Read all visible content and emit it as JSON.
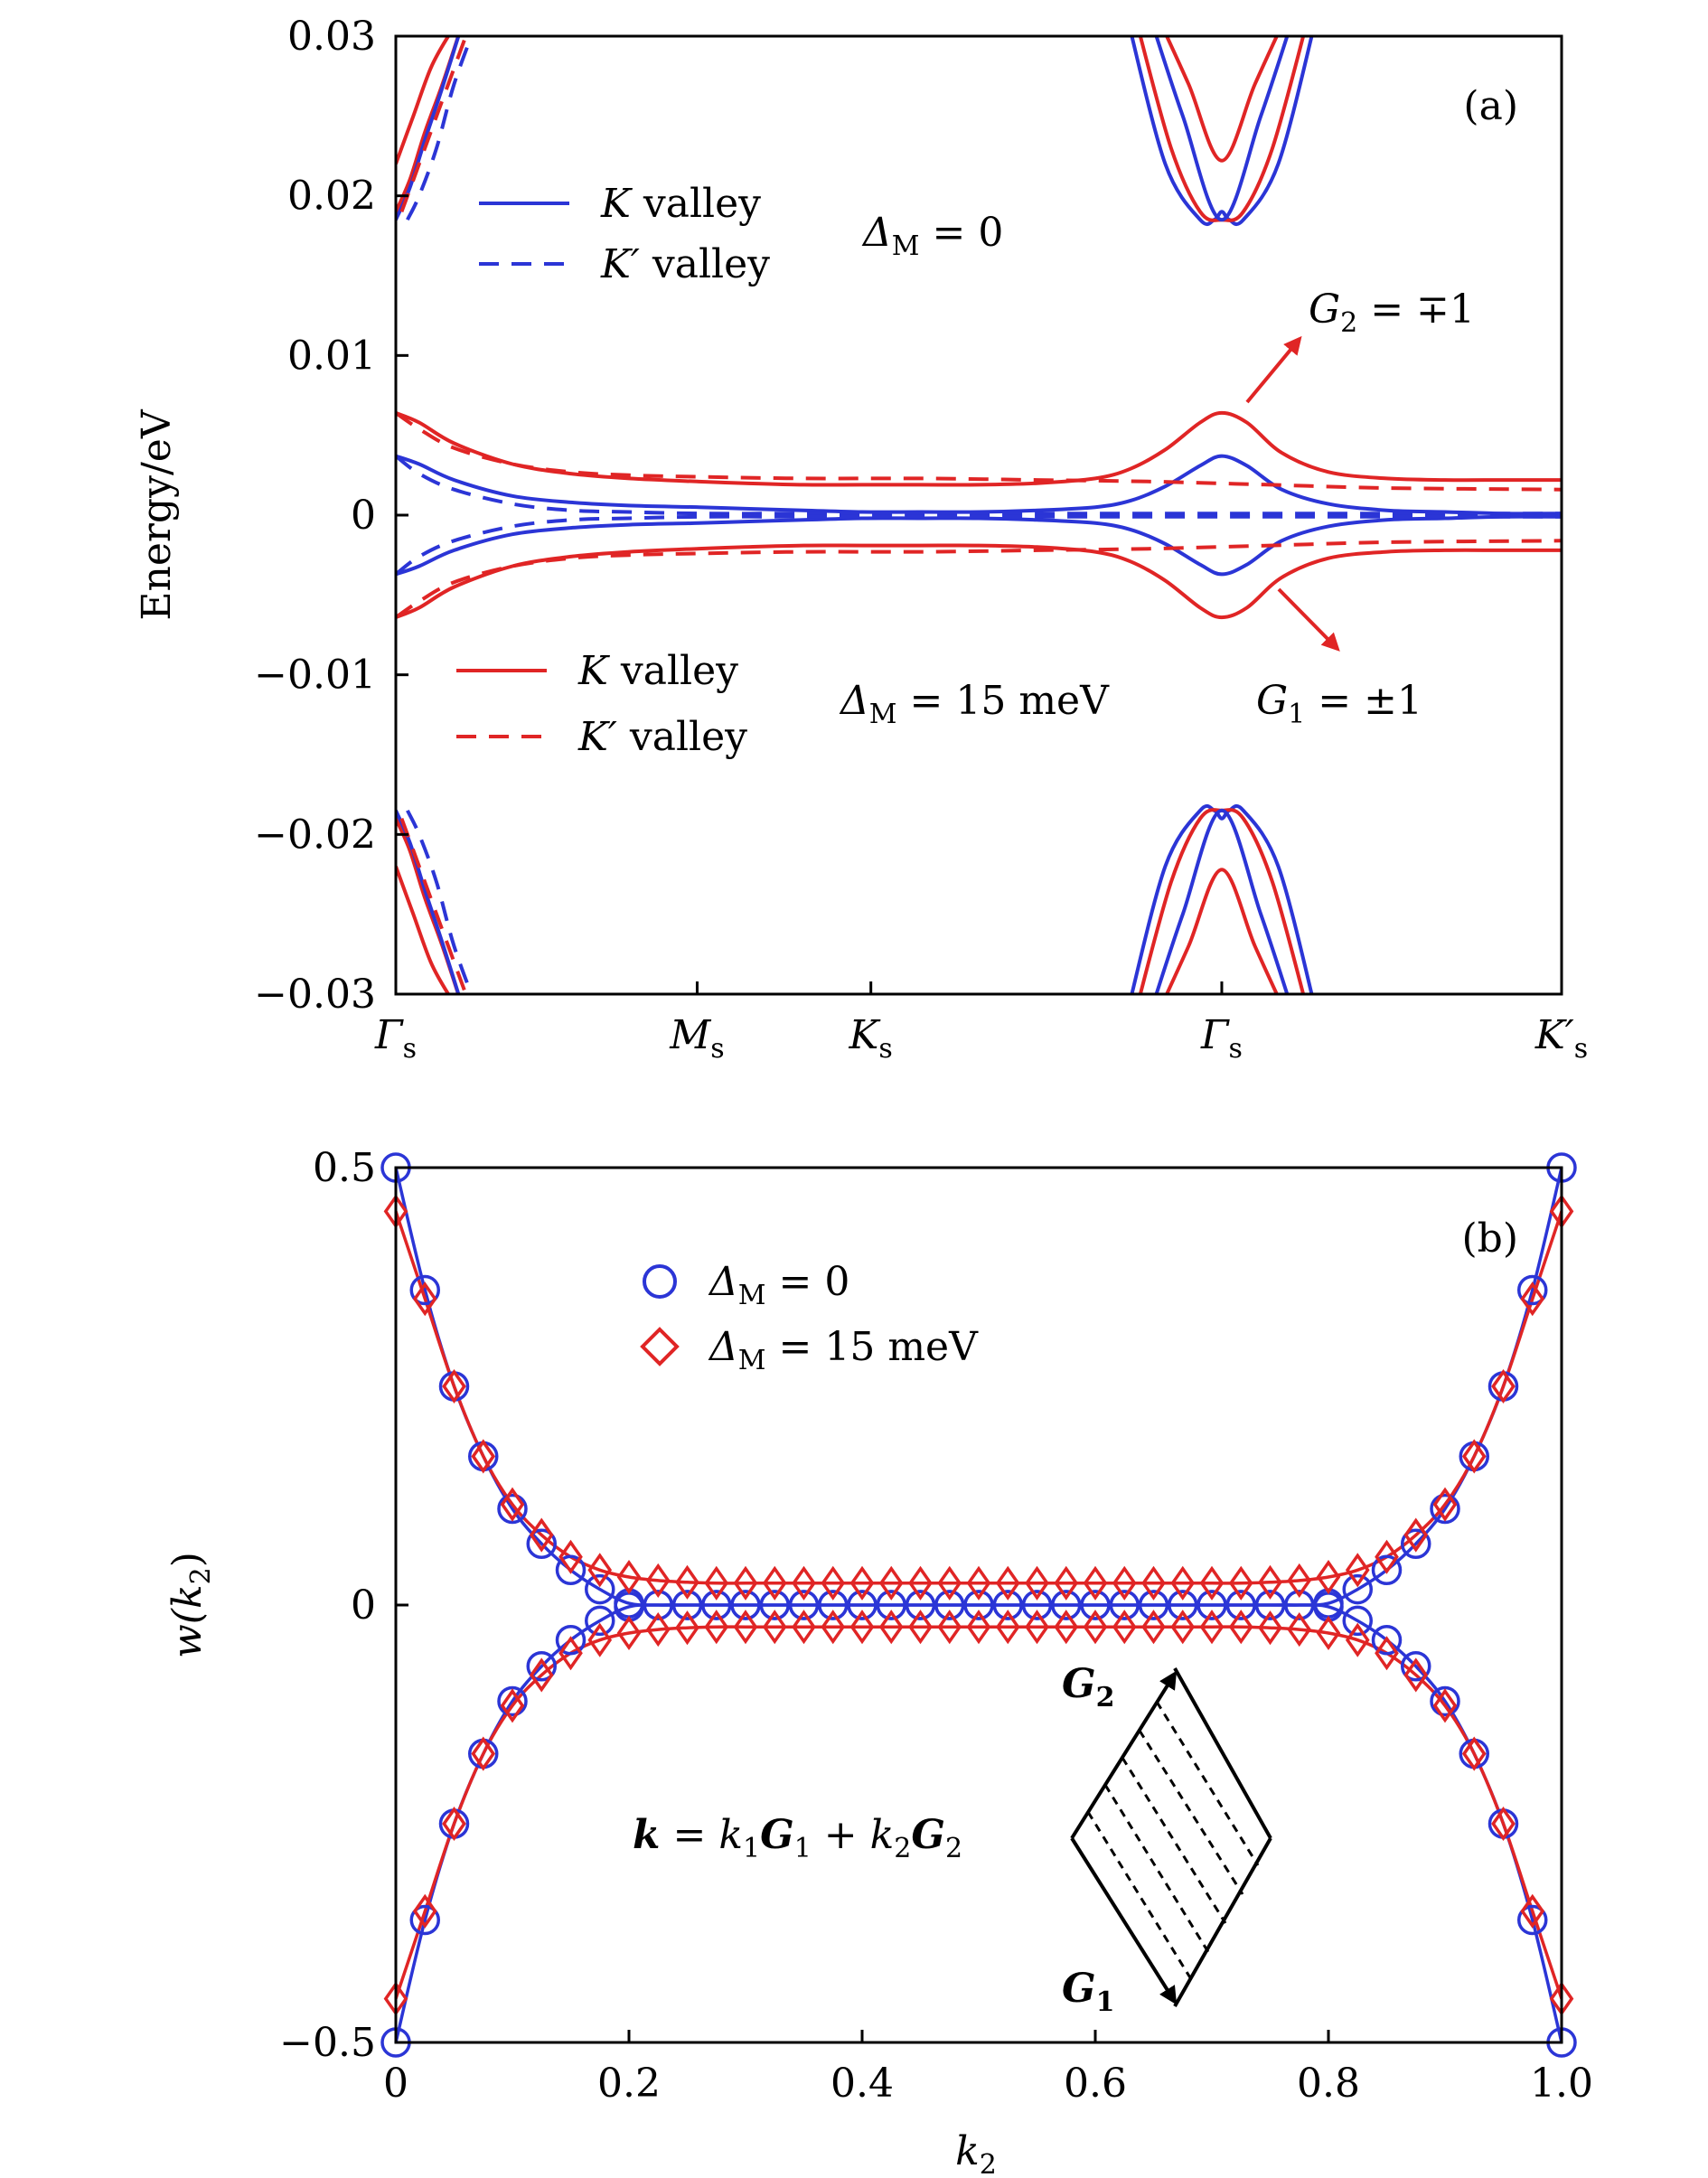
{
  "colors": {
    "blue": "#2b35d6",
    "red": "#e02525",
    "black": "#000000"
  },
  "chart_data": [
    {
      "type": "line",
      "panel_label": "(a)",
      "ylabel": "Energy/eV",
      "ylim": [
        -0.03,
        0.03
      ],
      "yticks": [
        -0.03,
        -0.02,
        -0.01,
        0,
        0.01,
        0.02,
        0.03
      ],
      "ytick_labels": [
        "−0.03",
        "−0.02",
        "−0.01",
        "0",
        "0.01",
        "0.02",
        "0.03"
      ],
      "xlim": [
        0,
        1
      ],
      "xticks": [
        {
          "pos": 0.0,
          "main": "Γ",
          "sub": "s"
        },
        {
          "pos": 0.2585,
          "main": "M",
          "sub": "s"
        },
        {
          "pos": 0.4075,
          "main": "K",
          "sub": "s"
        },
        {
          "pos": 0.7085,
          "main": "Γ",
          "sub": "s"
        },
        {
          "pos": 1.0,
          "main": "K′",
          "sub": "s"
        }
      ],
      "legend_top": {
        "entries": [
          {
            "main": "K",
            "rest": " valley",
            "style": "solid",
            "color": "blue"
          },
          {
            "main": "K′",
            "rest": " valley",
            "style": "dashed",
            "color": "blue"
          }
        ],
        "condition": {
          "sym": "Δ",
          "sub": "M",
          "rest": " = 0"
        }
      },
      "legend_bottom": {
        "entries": [
          {
            "main": "K",
            "rest": " valley",
            "style": "solid",
            "color": "red"
          },
          {
            "main": "K′",
            "rest": " valley",
            "style": "dashed",
            "color": "red"
          }
        ],
        "condition": {
          "sym": "Δ",
          "sub": "M",
          "rest": " = 15 meV"
        }
      },
      "annotations": [
        {
          "sym": "G",
          "sub": "2",
          "rest": " = ∓1"
        },
        {
          "sym": "G",
          "sub": "1",
          "rest": " = ±1"
        }
      ],
      "series": [
        {
          "name": "K valley, ΔM = 0",
          "color": "blue",
          "style": "solid",
          "x": [
            0,
            0.02,
            0.05,
            0.1,
            0.15,
            0.2,
            0.26,
            0.3,
            0.35,
            0.4,
            0.45,
            0.5,
            0.55,
            0.6,
            0.63,
            0.66,
            0.69,
            0.7085,
            0.73,
            0.76,
            0.8,
            0.85,
            0.9,
            0.95,
            1.0
          ],
          "y": [
            0.0037,
            0.0032,
            0.0022,
            0.0012,
            0.0008,
            0.0006,
            0.0005,
            0.0004,
            0.0003,
            0.0002,
            0.0002,
            0.0002,
            0.0003,
            0.0005,
            0.0009,
            0.0018,
            0.0031,
            0.0037,
            0.0031,
            0.0016,
            0.0007,
            0.0003,
            0.0002,
            0.0001,
            0.0001
          ]
        },
        {
          "name": "K′ valley, ΔM = 0",
          "color": "blue",
          "style": "dashed",
          "x": [
            0,
            0.02,
            0.05,
            0.1,
            0.15,
            0.2,
            0.26,
            0.35,
            0.45,
            0.55,
            0.65,
            0.75,
            0.85,
            1.0
          ],
          "y": [
            0.0037,
            0.0026,
            0.0016,
            0.0007,
            0.0003,
            0.0002,
            0.0001,
            0.0001,
            0.0001,
            0.0001,
            0.0001,
            0.0001,
            0.0001,
            0.0001
          ]
        },
        {
          "name": "K valley, ΔM = 15 meV",
          "color": "red",
          "style": "solid",
          "x": [
            0,
            0.02,
            0.05,
            0.1,
            0.15,
            0.2,
            0.26,
            0.3,
            0.35,
            0.4,
            0.45,
            0.5,
            0.55,
            0.6,
            0.63,
            0.66,
            0.69,
            0.7085,
            0.73,
            0.76,
            0.8,
            0.85,
            0.9,
            0.95,
            1.0
          ],
          "y": [
            0.0064,
            0.0058,
            0.0045,
            0.0032,
            0.0026,
            0.0023,
            0.0021,
            0.002,
            0.0019,
            0.0019,
            0.0019,
            0.0019,
            0.002,
            0.0023,
            0.0029,
            0.0041,
            0.0058,
            0.0064,
            0.0058,
            0.0039,
            0.0027,
            0.0023,
            0.0022,
            0.0022,
            0.0022
          ]
        },
        {
          "name": "K′ valley, ΔM = 15 meV",
          "color": "red",
          "style": "dashed",
          "x": [
            0,
            0.02,
            0.05,
            0.1,
            0.15,
            0.2,
            0.26,
            0.35,
            0.45,
            0.55,
            0.65,
            0.75,
            0.85,
            1.0
          ],
          "y": [
            0.0064,
            0.0054,
            0.0042,
            0.0032,
            0.0027,
            0.0025,
            0.0024,
            0.0023,
            0.0023,
            0.0022,
            0.0021,
            0.0019,
            0.0017,
            0.0016
          ]
        }
      ],
      "bulk_bands": [
        {
          "color": "red",
          "style": "solid",
          "x": [
            0,
            0.015,
            0.03,
            0.045,
            0.055
          ],
          "y": [
            0.022,
            0.025,
            0.028,
            0.03,
            0.031
          ]
        },
        {
          "color": "red",
          "style": "solid",
          "x": [
            0,
            0.012,
            0.025,
            0.04,
            0.058
          ],
          "y": [
            0.019,
            0.021,
            0.024,
            0.027,
            0.031
          ]
        },
        {
          "color": "blue",
          "style": "solid",
          "x": [
            0,
            0.012,
            0.025,
            0.04,
            0.058
          ],
          "y": [
            0.0185,
            0.0205,
            0.0235,
            0.0268,
            0.031
          ]
        },
        {
          "color": "blue",
          "style": "dashed",
          "x": [
            0.01,
            0.02,
            0.035,
            0.05,
            0.07
          ],
          "y": [
            0.0185,
            0.02,
            0.023,
            0.027,
            0.031
          ]
        },
        {
          "color": "red",
          "style": "dashed",
          "x": [
            0.005,
            0.015,
            0.03,
            0.045,
            0.065
          ],
          "y": [
            0.019,
            0.021,
            0.024,
            0.027,
            0.031
          ]
        },
        {
          "color": "red",
          "style": "solid",
          "x": [
            0,
            0.015,
            0.03,
            0.045,
            0.055
          ],
          "y": [
            -0.022,
            -0.025,
            -0.028,
            -0.03,
            -0.031
          ]
        },
        {
          "color": "red",
          "style": "solid",
          "x": [
            0,
            0.012,
            0.025,
            0.04,
            0.058
          ],
          "y": [
            -0.019,
            -0.021,
            -0.024,
            -0.027,
            -0.031
          ]
        },
        {
          "color": "blue",
          "style": "solid",
          "x": [
            0,
            0.012,
            0.025,
            0.04,
            0.058
          ],
          "y": [
            -0.0185,
            -0.0205,
            -0.0235,
            -0.0268,
            -0.031
          ]
        },
        {
          "color": "blue",
          "style": "dashed",
          "x": [
            0.01,
            0.02,
            0.035,
            0.05,
            0.07
          ],
          "y": [
            -0.0185,
            -0.02,
            -0.023,
            -0.027,
            -0.031
          ]
        },
        {
          "color": "red",
          "style": "dashed",
          "x": [
            0.005,
            0.015,
            0.03,
            0.045,
            0.065
          ],
          "y": [
            -0.019,
            -0.021,
            -0.024,
            -0.027,
            -0.031
          ]
        },
        {
          "color": "blue",
          "style": "solid",
          "x": [
            0.628,
            0.66,
            0.69,
            0.702,
            0.7085,
            0.715,
            0.727,
            0.757,
            0.789
          ],
          "y": [
            0.031,
            0.022,
            0.0185,
            0.0185,
            0.019,
            0.0185,
            0.0185,
            0.022,
            0.031
          ]
        },
        {
          "color": "red",
          "style": "solid",
          "x": [
            0.635,
            0.665,
            0.69,
            0.7085,
            0.727,
            0.752,
            0.782
          ],
          "y": [
            0.031,
            0.023,
            0.019,
            0.0185,
            0.019,
            0.023,
            0.031
          ]
        },
        {
          "color": "blue",
          "style": "solid",
          "x": [
            0.648,
            0.675,
            0.7085,
            0.742,
            0.769
          ],
          "y": [
            0.031,
            0.025,
            0.0185,
            0.025,
            0.031
          ]
        },
        {
          "color": "red",
          "style": "solid",
          "x": [
            0.655,
            0.68,
            0.7085,
            0.737,
            0.762
          ],
          "y": [
            0.031,
            0.027,
            0.0222,
            0.027,
            0.031
          ]
        },
        {
          "color": "blue",
          "style": "solid",
          "x": [
            0.628,
            0.66,
            0.69,
            0.702,
            0.7085,
            0.715,
            0.727,
            0.757,
            0.789
          ],
          "y": [
            -0.031,
            -0.022,
            -0.0185,
            -0.0185,
            -0.019,
            -0.0185,
            -0.0185,
            -0.022,
            -0.031
          ]
        },
        {
          "color": "red",
          "style": "solid",
          "x": [
            0.635,
            0.665,
            0.69,
            0.7085,
            0.727,
            0.752,
            0.782
          ],
          "y": [
            -0.031,
            -0.023,
            -0.019,
            -0.0185,
            -0.019,
            -0.023,
            -0.031
          ]
        },
        {
          "color": "blue",
          "style": "solid",
          "x": [
            0.648,
            0.675,
            0.7085,
            0.742,
            0.769
          ],
          "y": [
            -0.031,
            -0.025,
            -0.0185,
            -0.025,
            -0.031
          ]
        },
        {
          "color": "red",
          "style": "solid",
          "x": [
            0.655,
            0.68,
            0.7085,
            0.737,
            0.762
          ],
          "y": [
            -0.031,
            -0.027,
            -0.0222,
            -0.027,
            -0.031
          ]
        }
      ]
    },
    {
      "type": "scatter",
      "panel_label": "(b)",
      "xlabel": {
        "sym": "k",
        "sub": "2"
      },
      "ylabel": {
        "pre": "w(",
        "sym": "k",
        "sub": "2",
        "post": ")"
      },
      "xlim": [
        0,
        1.0
      ],
      "ylim": [
        -0.5,
        0.5
      ],
      "xticks": [
        0,
        0.2,
        0.4,
        0.6,
        0.8,
        1.0
      ],
      "xtick_labels": [
        "0",
        "0.2",
        "0.4",
        "0.6",
        "0.8",
        "1.0"
      ],
      "yticks": [
        -0.5,
        0,
        0.5
      ],
      "ytick_labels": [
        "−0.5",
        "0",
        "0.5"
      ],
      "legend": [
        {
          "marker": "circle",
          "color": "blue",
          "sym": "Δ",
          "sub": "M",
          "rest": " = 0"
        },
        {
          "marker": "diamond",
          "color": "red",
          "sym": "Δ",
          "sub": "M",
          "rest": " = 15 meV"
        }
      ],
      "x_grid": [
        0,
        0.025,
        0.05,
        0.075,
        0.1,
        0.125,
        0.15,
        0.175,
        0.2,
        0.225,
        0.25,
        0.275,
        0.3,
        0.325,
        0.35,
        0.375,
        0.4,
        0.425,
        0.45,
        0.475,
        0.5,
        0.525,
        0.55,
        0.575,
        0.6,
        0.625,
        0.65,
        0.675,
        0.7,
        0.725,
        0.75,
        0.775,
        0.8,
        0.825,
        0.85,
        0.875,
        0.9,
        0.925,
        0.95,
        0.975,
        1.0
      ],
      "series": [
        {
          "name": "ΔM = 0 (upper)",
          "color": "blue",
          "marker": "circle",
          "y": [
            0.5,
            0.36,
            0.25,
            0.17,
            0.11,
            0.07,
            0.04,
            0.018,
            0.002,
            0,
            0,
            0,
            0,
            0,
            0,
            0,
            0,
            0,
            0,
            0,
            0,
            0,
            0,
            0,
            0,
            0,
            0,
            0,
            0,
            0,
            0,
            0,
            0.002,
            0.018,
            0.04,
            0.07,
            0.11,
            0.17,
            0.25,
            0.36,
            0.5
          ]
        },
        {
          "name": "ΔM = 0 (lower)",
          "color": "blue",
          "marker": "circle",
          "y": [
            -0.5,
            -0.36,
            -0.25,
            -0.17,
            -0.11,
            -0.07,
            -0.04,
            -0.018,
            -0.002,
            0,
            0,
            0,
            0,
            0,
            0,
            0,
            0,
            0,
            0,
            0,
            0,
            0,
            0,
            0,
            0,
            0,
            0,
            0,
            0,
            0,
            0,
            0,
            -0.002,
            -0.018,
            -0.04,
            -0.07,
            -0.11,
            -0.17,
            -0.25,
            -0.36,
            -0.5
          ]
        },
        {
          "name": "ΔM = 15 meV (upper)",
          "color": "red",
          "marker": "diamond",
          "y": [
            0.45,
            0.35,
            0.25,
            0.17,
            0.115,
            0.08,
            0.055,
            0.04,
            0.032,
            0.028,
            0.026,
            0.025,
            0.025,
            0.025,
            0.025,
            0.025,
            0.025,
            0.025,
            0.025,
            0.025,
            0.025,
            0.025,
            0.025,
            0.025,
            0.025,
            0.025,
            0.025,
            0.025,
            0.025,
            0.025,
            0.026,
            0.028,
            0.032,
            0.04,
            0.055,
            0.08,
            0.115,
            0.17,
            0.25,
            0.35,
            0.45
          ]
        },
        {
          "name": "ΔM = 15 meV (lower)",
          "color": "red",
          "marker": "diamond",
          "y": [
            -0.45,
            -0.35,
            -0.25,
            -0.17,
            -0.115,
            -0.08,
            -0.055,
            -0.04,
            -0.032,
            -0.028,
            -0.026,
            -0.025,
            -0.025,
            -0.025,
            -0.025,
            -0.025,
            -0.025,
            -0.025,
            -0.025,
            -0.025,
            -0.025,
            -0.025,
            -0.025,
            -0.025,
            -0.025,
            -0.025,
            -0.025,
            -0.025,
            -0.025,
            -0.025,
            -0.026,
            -0.028,
            -0.032,
            -0.04,
            -0.055,
            -0.08,
            -0.115,
            -0.17,
            -0.25,
            -0.35,
            -0.45
          ]
        }
      ],
      "inset": {
        "equation": {
          "lhs": "k",
          "parts": [
            " = ",
            "k",
            "1",
            "G",
            "1",
            " + ",
            "k",
            "2",
            "G",
            "2"
          ]
        },
        "labels": [
          {
            "sym": "G",
            "sub": "2"
          },
          {
            "sym": "G",
            "sub": "1"
          }
        ]
      }
    }
  ]
}
